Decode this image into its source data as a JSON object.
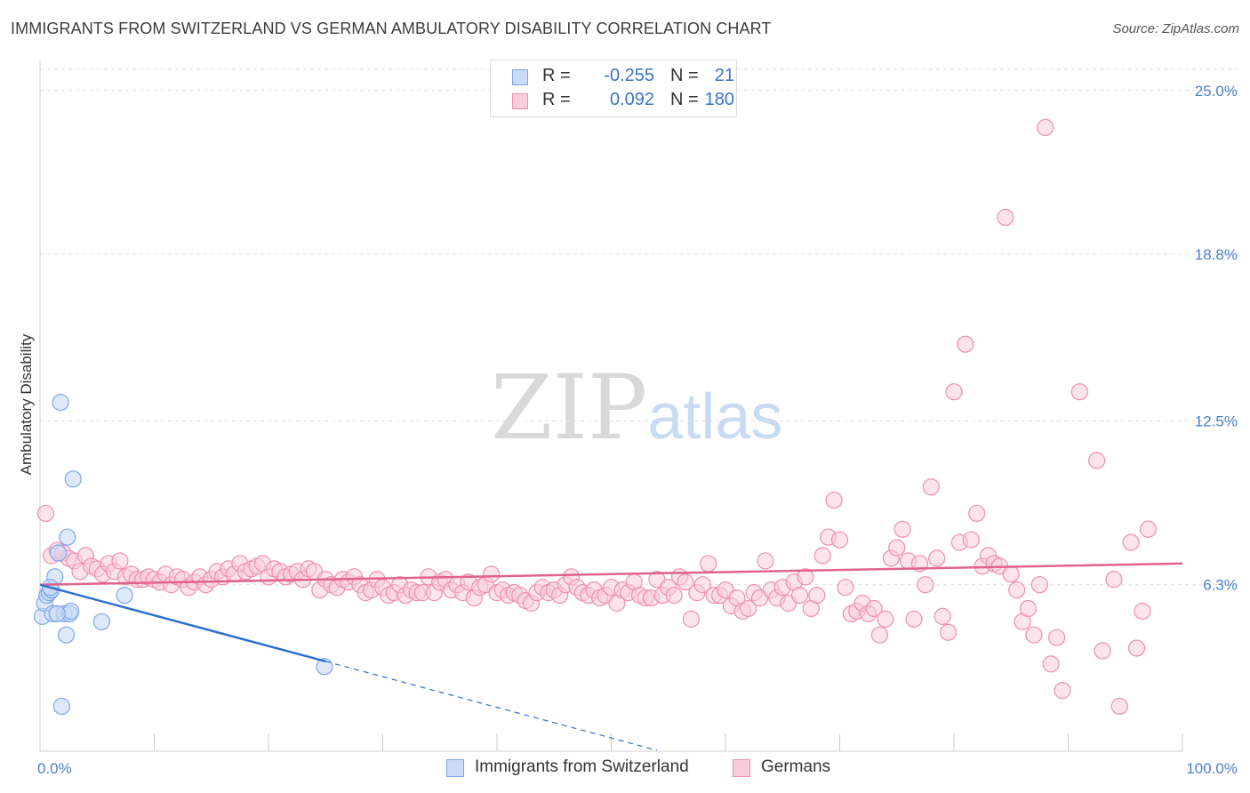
{
  "title": "IMMIGRANTS FROM SWITZERLAND VS GERMAN AMBULATORY DISABILITY CORRELATION CHART",
  "source": "Source: ZipAtlas.com",
  "watermark": {
    "zip": "ZIP",
    "atlas": "atlas"
  },
  "legend": {
    "rows": [
      {
        "r_label": "R =",
        "r_value": "-0.255",
        "n_label": "N =",
        "n_value": "21",
        "color": "#7aa8e8",
        "fill": "#c9dbf7"
      },
      {
        "r_label": "R =",
        "r_value": "0.092",
        "n_label": "N =",
        "n_value": "180",
        "color": "#ee8fb0",
        "fill": "#f9ccdc"
      }
    ]
  },
  "bottom_legend": [
    {
      "label": "Immigrants from Switzerland",
      "color": "#7aa8e8",
      "fill": "#c9dbf7"
    },
    {
      "label": "Germans",
      "color": "#ee8fb0",
      "fill": "#f9ccdc"
    }
  ],
  "chart_data": {
    "type": "scatter",
    "title": "IMMIGRANTS FROM SWITZERLAND VS GERMAN AMBULATORY DISABILITY CORRELATION CHART",
    "xlabel": "",
    "ylabel": "Ambulatory Disability",
    "xlim": [
      0,
      100
    ],
    "ylim": [
      0,
      25.8
    ],
    "x_tick_labels": [
      "0.0%",
      "100.0%"
    ],
    "y_ticks": [
      6.3,
      12.5,
      18.8,
      25.0
    ],
    "y_tick_labels": [
      "6.3%",
      "12.5%",
      "18.8%",
      "25.0%"
    ],
    "grid": "horizontal dashed",
    "legend_position": "top-center",
    "series": [
      {
        "name": "Immigrants from Switzerland",
        "color": "#7aa8e8",
        "fill": "#c9dbf7",
        "trend_color": "#2f6fd0",
        "trend": {
          "x0": 0,
          "y0": 6.3,
          "x1": 25,
          "y1": 3.4,
          "dash_to_x": 54
        },
        "points": [
          [
            0.2,
            5.1
          ],
          [
            0.4,
            5.6
          ],
          [
            0.6,
            5.9
          ],
          [
            0.8,
            6.0
          ],
          [
            1.0,
            6.1
          ],
          [
            1.1,
            5.2
          ],
          [
            1.3,
            6.6
          ],
          [
            1.6,
            7.5
          ],
          [
            1.8,
            13.2
          ],
          [
            1.9,
            1.7
          ],
          [
            2.1,
            5.2
          ],
          [
            2.3,
            4.4
          ],
          [
            2.4,
            8.1
          ],
          [
            2.6,
            5.2
          ],
          [
            2.7,
            5.3
          ],
          [
            2.9,
            10.3
          ],
          [
            5.4,
            4.9
          ],
          [
            7.4,
            5.9
          ],
          [
            24.9,
            3.2
          ],
          [
            0.9,
            6.2
          ],
          [
            1.5,
            5.2
          ]
        ]
      },
      {
        "name": "Germans",
        "color": "#ee8fb0",
        "fill": "#f9ccdc",
        "trend_color": "#e0628e",
        "trend": {
          "x0": 0,
          "y0": 6.3,
          "x1": 100,
          "y1": 7.1
        },
        "points": [
          [
            0.5,
            9.0
          ],
          [
            1.0,
            7.4
          ],
          [
            1.5,
            7.6
          ],
          [
            2.0,
            7.5
          ],
          [
            2.5,
            7.3
          ],
          [
            3.0,
            7.2
          ],
          [
            3.5,
            6.8
          ],
          [
            4.0,
            7.4
          ],
          [
            4.5,
            7.0
          ],
          [
            5.0,
            6.9
          ],
          [
            5.5,
            6.7
          ],
          [
            6.0,
            7.1
          ],
          [
            6.5,
            6.8
          ],
          [
            7.0,
            7.2
          ],
          [
            7.5,
            6.6
          ],
          [
            8.0,
            6.7
          ],
          [
            8.5,
            6.5
          ],
          [
            9.0,
            6.5
          ],
          [
            9.5,
            6.6
          ],
          [
            10.0,
            6.5
          ],
          [
            10.5,
            6.4
          ],
          [
            11.0,
            6.7
          ],
          [
            11.5,
            6.3
          ],
          [
            12.0,
            6.6
          ],
          [
            12.5,
            6.5
          ],
          [
            13.0,
            6.2
          ],
          [
            13.5,
            6.4
          ],
          [
            14.0,
            6.6
          ],
          [
            14.5,
            6.3
          ],
          [
            15.0,
            6.5
          ],
          [
            15.5,
            6.8
          ],
          [
            16.0,
            6.6
          ],
          [
            16.5,
            6.9
          ],
          [
            17.0,
            6.7
          ],
          [
            17.5,
            7.1
          ],
          [
            18.0,
            6.8
          ],
          [
            18.5,
            6.9
          ],
          [
            19.0,
            7.0
          ],
          [
            19.5,
            7.1
          ],
          [
            20.0,
            6.6
          ],
          [
            20.5,
            6.9
          ],
          [
            21.0,
            6.8
          ],
          [
            21.5,
            6.6
          ],
          [
            22.0,
            6.7
          ],
          [
            22.5,
            6.8
          ],
          [
            23.0,
            6.5
          ],
          [
            23.5,
            6.9
          ],
          [
            24.0,
            6.8
          ],
          [
            24.5,
            6.1
          ],
          [
            25.0,
            6.5
          ],
          [
            25.5,
            6.3
          ],
          [
            26.0,
            6.2
          ],
          [
            26.5,
            6.5
          ],
          [
            27.0,
            6.4
          ],
          [
            27.5,
            6.6
          ],
          [
            28.0,
            6.3
          ],
          [
            28.5,
            6.0
          ],
          [
            29.0,
            6.1
          ],
          [
            29.5,
            6.5
          ],
          [
            30.0,
            6.2
          ],
          [
            30.5,
            5.9
          ],
          [
            31.0,
            6.0
          ],
          [
            31.5,
            6.3
          ],
          [
            32.0,
            5.9
          ],
          [
            32.5,
            6.1
          ],
          [
            33.0,
            6.0
          ],
          [
            33.5,
            6.0
          ],
          [
            34.0,
            6.6
          ],
          [
            34.5,
            6.0
          ],
          [
            35.0,
            6.4
          ],
          [
            35.5,
            6.5
          ],
          [
            36.0,
            6.1
          ],
          [
            36.5,
            6.3
          ],
          [
            37.0,
            6.0
          ],
          [
            37.5,
            6.4
          ],
          [
            38.0,
            5.8
          ],
          [
            38.5,
            6.2
          ],
          [
            39.0,
            6.3
          ],
          [
            39.5,
            6.7
          ],
          [
            40.0,
            6.0
          ],
          [
            40.5,
            6.1
          ],
          [
            41.0,
            5.9
          ],
          [
            41.5,
            6.0
          ],
          [
            42.0,
            5.9
          ],
          [
            42.5,
            5.7
          ],
          [
            43.0,
            5.6
          ],
          [
            43.5,
            6.0
          ],
          [
            44.0,
            6.2
          ],
          [
            44.5,
            6.0
          ],
          [
            45.0,
            6.1
          ],
          [
            45.5,
            5.9
          ],
          [
            46.0,
            6.3
          ],
          [
            46.5,
            6.6
          ],
          [
            47.0,
            6.2
          ],
          [
            47.5,
            6.0
          ],
          [
            48.0,
            5.9
          ],
          [
            48.5,
            6.1
          ],
          [
            49.0,
            5.8
          ],
          [
            49.5,
            5.9
          ],
          [
            50.0,
            6.2
          ],
          [
            50.5,
            5.6
          ],
          [
            51.0,
            6.1
          ],
          [
            51.5,
            6.0
          ],
          [
            52.0,
            6.4
          ],
          [
            52.5,
            5.9
          ],
          [
            53.0,
            5.8
          ],
          [
            53.5,
            5.8
          ],
          [
            54.0,
            6.5
          ],
          [
            54.5,
            5.9
          ],
          [
            55.0,
            6.2
          ],
          [
            55.5,
            5.9
          ],
          [
            56.0,
            6.6
          ],
          [
            56.5,
            6.4
          ],
          [
            57.0,
            5.0
          ],
          [
            57.5,
            6.0
          ],
          [
            58.0,
            6.3
          ],
          [
            58.5,
            7.1
          ],
          [
            59.0,
            5.9
          ],
          [
            59.5,
            5.9
          ],
          [
            60.0,
            6.1
          ],
          [
            60.5,
            5.5
          ],
          [
            61.0,
            5.8
          ],
          [
            61.5,
            5.3
          ],
          [
            62.0,
            5.4
          ],
          [
            62.5,
            6.0
          ],
          [
            63.0,
            5.8
          ],
          [
            63.5,
            7.2
          ],
          [
            64.0,
            6.1
          ],
          [
            64.5,
            5.8
          ],
          [
            65.0,
            6.2
          ],
          [
            65.5,
            5.6
          ],
          [
            66.0,
            6.4
          ],
          [
            66.5,
            5.9
          ],
          [
            67.0,
            6.6
          ],
          [
            67.5,
            5.4
          ],
          [
            68.0,
            5.9
          ],
          [
            68.5,
            7.4
          ],
          [
            69.0,
            8.1
          ],
          [
            69.5,
            9.5
          ],
          [
            70.0,
            8.0
          ],
          [
            70.5,
            6.2
          ],
          [
            71.0,
            5.2
          ],
          [
            71.5,
            5.3
          ],
          [
            72.0,
            5.6
          ],
          [
            72.5,
            5.2
          ],
          [
            73.0,
            5.4
          ],
          [
            73.5,
            4.4
          ],
          [
            74.0,
            5.0
          ],
          [
            74.5,
            7.3
          ],
          [
            75.0,
            7.7
          ],
          [
            75.5,
            8.4
          ],
          [
            76.0,
            7.2
          ],
          [
            76.5,
            5.0
          ],
          [
            77.0,
            7.1
          ],
          [
            77.5,
            6.3
          ],
          [
            78.0,
            10.0
          ],
          [
            78.5,
            7.3
          ],
          [
            79.0,
            5.1
          ],
          [
            79.5,
            4.5
          ],
          [
            80.0,
            13.6
          ],
          [
            80.5,
            7.9
          ],
          [
            81.0,
            15.4
          ],
          [
            81.5,
            8.0
          ],
          [
            82.0,
            9.0
          ],
          [
            82.5,
            7.0
          ],
          [
            83.0,
            7.4
          ],
          [
            83.5,
            7.1
          ],
          [
            84.0,
            7.0
          ],
          [
            84.5,
            20.2
          ],
          [
            85.0,
            6.7
          ],
          [
            85.5,
            6.1
          ],
          [
            86.0,
            4.9
          ],
          [
            86.5,
            5.4
          ],
          [
            87.0,
            4.4
          ],
          [
            87.5,
            6.3
          ],
          [
            88.0,
            23.6
          ],
          [
            88.5,
            3.3
          ],
          [
            89.0,
            4.3
          ],
          [
            89.5,
            2.3
          ],
          [
            91.0,
            13.6
          ],
          [
            92.5,
            11.0
          ],
          [
            93.0,
            3.8
          ],
          [
            94.0,
            6.5
          ],
          [
            94.5,
            1.7
          ],
          [
            95.5,
            7.9
          ],
          [
            96.0,
            3.9
          ],
          [
            96.5,
            5.3
          ],
          [
            97.0,
            8.4
          ]
        ]
      }
    ]
  }
}
